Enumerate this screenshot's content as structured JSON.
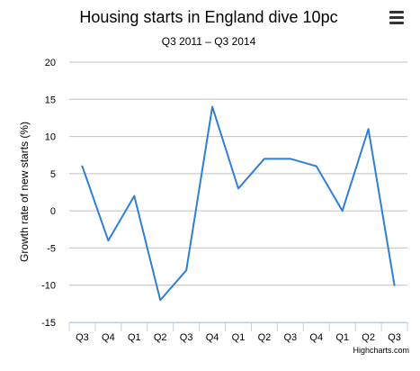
{
  "chart_data": {
    "type": "line",
    "title": "Housing starts in England dive 10pc",
    "subtitle": "Q3 2011 – Q3 2014",
    "xlabel": "",
    "ylabel": "Growth rate of new starts (%)",
    "categories": [
      "Q3",
      "Q4",
      "Q1",
      "Q2",
      "Q3",
      "Q4",
      "Q1",
      "Q2",
      "Q3",
      "Q4",
      "Q1",
      "Q2",
      "Q3"
    ],
    "series": [
      {
        "values": [
          6,
          -4,
          2,
          -12,
          -8,
          14,
          3,
          7,
          7,
          6,
          0,
          11,
          -10
        ]
      }
    ],
    "ylim": [
      -15,
      20
    ],
    "yticks": [
      -15,
      -10,
      -5,
      0,
      5,
      10,
      15,
      20
    ],
    "grid": true,
    "legend": "none"
  },
  "credits": "Highcharts.com",
  "menu_icon": "hamburger-menu-icon",
  "colors": {
    "series": "#2f7ed8",
    "grid": "#c0c0c0",
    "axis_line": "#c0d0e0",
    "title": "#274b6d",
    "subtitle": "#4d759e",
    "tick_label": "#666666",
    "credits": "#909090",
    "menu_icon": "#333333"
  }
}
